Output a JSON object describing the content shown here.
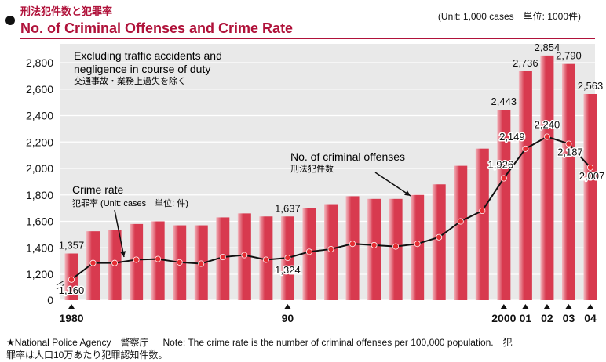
{
  "header": {
    "title_jp": "刑法犯件数と犯罪率",
    "title_en": "No. of Criminal Offenses and Crime Rate",
    "unit": "(Unit: 1,000 cases　単位: 1000件)"
  },
  "footer": {
    "source": "★National Police Agency　警察庁",
    "note_en": "Note: The crime rate is the number of criminal offenses per 100,000 population.　犯",
    "note_jp": "罪率は人口10万あたり犯罪認知件数。"
  },
  "annotations": {
    "excluding_en_1": "Excluding traffic accidents and",
    "excluding_en_2": "negligence in course of duty",
    "excluding_jp": "交通事故・業務上過失を除く",
    "offenses_en": "No. of  criminal offenses",
    "offenses_jp": "刑法犯件数",
    "rate_en": "Crime rate",
    "rate_jp": "犯罪率 (Unit: cases　単位: 件)"
  },
  "colors": {
    "bar": "#d83a4f",
    "bar_shade": "#f3b9c0",
    "line": "#111111",
    "marker": "#e52c32",
    "plot_bg": "#e9e9e9",
    "accent": "#b0123a"
  },
  "chart_data": {
    "type": "bar",
    "x_tick_labels": [
      "1980",
      "90",
      "2000",
      "01",
      "02",
      "03",
      "04"
    ],
    "years": [
      1980,
      1981,
      1982,
      1983,
      1984,
      1985,
      1986,
      1987,
      1988,
      1989,
      1990,
      1991,
      1992,
      1993,
      1994,
      1995,
      1996,
      1997,
      1998,
      1999,
      2000,
      2001,
      2002,
      2003,
      2004
    ],
    "y_ticks": [
      "0",
      "1,200",
      "1,400",
      "1,600",
      "1,800",
      "2,000",
      "2,200",
      "2,400",
      "2,600",
      "2,800"
    ],
    "series": [
      {
        "name": "No. of criminal offenses",
        "type": "bar",
        "values": [
          1357,
          1525,
          1535,
          1580,
          1600,
          1570,
          1570,
          1630,
          1660,
          1637,
          1637,
          1700,
          1730,
          1790,
          1770,
          1770,
          1800,
          1880,
          2020,
          2150,
          2443,
          2736,
          2854,
          2790,
          2563
        ],
        "labels": {
          "0": "1,357",
          "10": "1,637",
          "20": "2,443",
          "21": "2,736",
          "22": "2,854",
          "23": "2,790",
          "24": "2,563"
        }
      },
      {
        "name": "Crime rate",
        "type": "line",
        "values": [
          1160,
          1285,
          1285,
          1310,
          1315,
          1290,
          1280,
          1330,
          1345,
          1310,
          1324,
          1370,
          1390,
          1430,
          1420,
          1410,
          1430,
          1480,
          1600,
          1680,
          1926,
          2149,
          2240,
          2187,
          2007
        ],
        "labels": {
          "0": "1,160",
          "10": "1,324",
          "20": "1,926",
          "21": "2,149",
          "22": "2,240",
          "23": "2,187",
          "24": "2,007"
        }
      }
    ]
  }
}
